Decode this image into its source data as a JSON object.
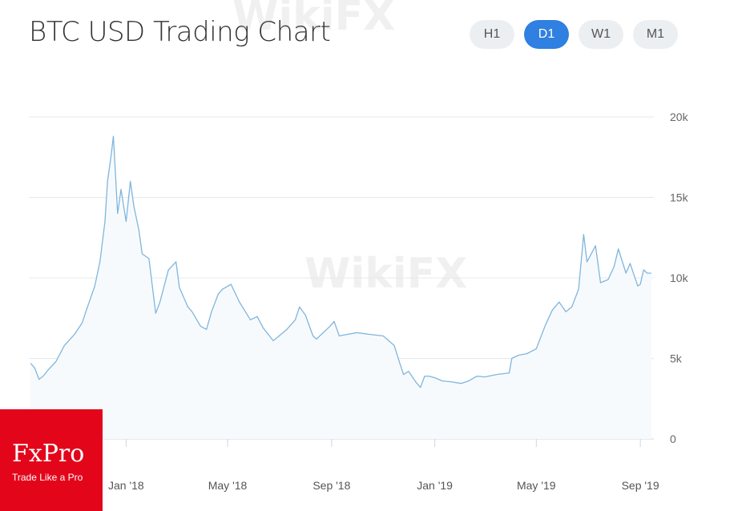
{
  "header": {
    "title": "BTC USD Trading Chart",
    "timeframes": [
      {
        "label": "H1",
        "active": false
      },
      {
        "label": "D1",
        "active": true
      },
      {
        "label": "W1",
        "active": false
      },
      {
        "label": "M1",
        "active": false
      }
    ]
  },
  "watermark": {
    "text": "WikiFX"
  },
  "logo": {
    "name": "FxPro",
    "slogan": "Trade Like a Pro"
  },
  "colors": {
    "line": "#7fb6dc",
    "fill": "#f7fafd",
    "grid": "#e4e8ec",
    "active_button": "#2f80e0"
  },
  "chart_data": {
    "type": "area",
    "title": "BTC USD Trading Chart",
    "xlabel": "",
    "ylabel": "",
    "ylim": [
      0,
      20000
    ],
    "y_ticks": [
      0,
      5000,
      10000,
      15000,
      20000
    ],
    "y_tick_labels": [
      "0",
      "5k",
      "10k",
      "15k",
      "20k"
    ],
    "x_ticks": [
      "2018-01-01",
      "2018-05-01",
      "2018-09-01",
      "2019-01-01",
      "2019-05-01",
      "2019-09-01"
    ],
    "x_tick_labels": [
      "Jan '18",
      "May '18",
      "Sep '18",
      "Jan '19",
      "May '19",
      "Sep '19"
    ],
    "y_axis_position": "right",
    "grid": true,
    "series": [
      {
        "x": [
          "2017-09-10",
          "2017-09-15",
          "2017-09-20",
          "2017-09-25",
          "2017-10-01",
          "2017-10-10",
          "2017-10-20",
          "2017-11-01",
          "2017-11-10",
          "2017-11-15",
          "2017-11-25",
          "2017-12-01",
          "2017-12-07",
          "2017-12-10",
          "2017-12-14",
          "2017-12-17",
          "2017-12-22",
          "2017-12-26",
          "2018-01-01",
          "2018-01-06",
          "2018-01-10",
          "2018-01-16",
          "2018-01-20",
          "2018-01-28",
          "2018-02-05",
          "2018-02-10",
          "2018-02-20",
          "2018-03-01",
          "2018-03-05",
          "2018-03-10",
          "2018-03-15",
          "2018-03-20",
          "2018-03-30",
          "2018-04-06",
          "2018-04-12",
          "2018-04-20",
          "2018-04-25",
          "2018-05-05",
          "2018-05-15",
          "2018-05-28",
          "2018-06-05",
          "2018-06-12",
          "2018-06-24",
          "2018-07-01",
          "2018-07-10",
          "2018-07-20",
          "2018-07-25",
          "2018-08-01",
          "2018-08-10",
          "2018-08-14",
          "2018-08-30",
          "2018-09-04",
          "2018-09-10",
          "2018-09-20",
          "2018-10-01",
          "2018-10-15",
          "2018-11-01",
          "2018-11-14",
          "2018-11-20",
          "2018-11-25",
          "2018-12-01",
          "2018-12-10",
          "2018-12-15",
          "2018-12-20",
          "2018-12-25",
          "2019-01-01",
          "2019-01-10",
          "2019-01-20",
          "2019-02-01",
          "2019-02-10",
          "2019-02-20",
          "2019-03-01",
          "2019-03-15",
          "2019-03-30",
          "2019-04-02",
          "2019-04-10",
          "2019-04-20",
          "2019-05-01",
          "2019-05-12",
          "2019-05-20",
          "2019-05-28",
          "2019-06-05",
          "2019-06-12",
          "2019-06-20",
          "2019-06-26",
          "2019-06-30",
          "2019-07-05",
          "2019-07-10",
          "2019-07-16",
          "2019-07-25",
          "2019-08-01",
          "2019-08-06",
          "2019-08-15",
          "2019-08-20",
          "2019-08-29",
          "2019-09-01",
          "2019-09-05",
          "2019-09-09",
          "2019-09-14"
        ],
        "values": [
          4700,
          4400,
          3700,
          3900,
          4300,
          4800,
          5800,
          6500,
          7200,
          8000,
          9500,
          11000,
          13500,
          16000,
          17500,
          18800,
          14000,
          15500,
          13500,
          16000,
          14500,
          13000,
          11500,
          11200,
          7800,
          8500,
          10500,
          11000,
          9400,
          8800,
          8200,
          7900,
          7000,
          6800,
          7900,
          9000,
          9300,
          9600,
          8500,
          7400,
          7600,
          6900,
          6100,
          6400,
          6800,
          7400,
          8200,
          7700,
          6400,
          6200,
          7000,
          7300,
          6400,
          6500,
          6600,
          6500,
          6400,
          5800,
          4800,
          4000,
          4200,
          3500,
          3200,
          3900,
          3900,
          3800,
          3600,
          3550,
          3450,
          3600,
          3900,
          3850,
          4000,
          4100,
          5000,
          5200,
          5300,
          5600,
          7100,
          8000,
          8500,
          7900,
          8200,
          9300,
          12700,
          11000,
          11500,
          12000,
          9700,
          9900,
          10700,
          11800,
          10300,
          10900,
          9500,
          9600,
          10500,
          10300,
          10300
        ]
      }
    ]
  }
}
